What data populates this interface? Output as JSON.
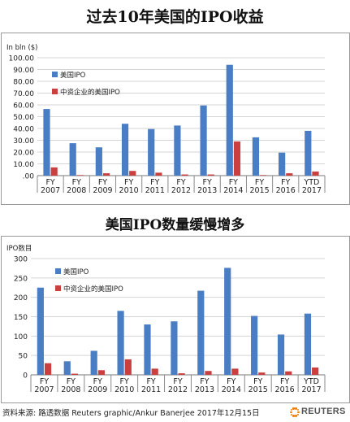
{
  "charts": {
    "top_title": "过去10年美国的IPO收益",
    "bottom_title": "美国IPO数量缓慢增多"
  },
  "chart_data": [
    {
      "type": "bar",
      "title": "过去10年美国的IPO收益",
      "ylabel": "In bln ($)",
      "ylim": [
        0,
        100
      ],
      "yticks": [
        0,
        10,
        20,
        30,
        40,
        50,
        60,
        70,
        80,
        90,
        100
      ],
      "ytick_labels": [
        ".00",
        "10.00",
        "20.00",
        "30.00",
        "40.00",
        "50.00",
        "60.00",
        "70.00",
        "80.00",
        "90.00",
        "100.00"
      ],
      "categories": [
        [
          "FY",
          "2007"
        ],
        [
          "FY",
          "2008"
        ],
        [
          "FY",
          "2009"
        ],
        [
          "FY",
          "2010"
        ],
        [
          "FY",
          "2011"
        ],
        [
          "FY",
          "2012"
        ],
        [
          "FY",
          "2013"
        ],
        [
          "FY",
          "2014"
        ],
        [
          "FY",
          "2015"
        ],
        [
          "FY",
          "2016"
        ],
        [
          "YTD",
          "2017"
        ]
      ],
      "series": [
        {
          "name": "美国IPO",
          "color": "#4a7ec4",
          "values": [
            56.5,
            27.5,
            24,
            44,
            39.5,
            42.5,
            59.5,
            94,
            32.5,
            19.5,
            38
          ]
        },
        {
          "name": "中资企业的美国IPO",
          "color": "#c9403e",
          "values": [
            7,
            0.5,
            2,
            4,
            2.5,
            1,
            1,
            29,
            0.5,
            2,
            3.5
          ]
        }
      ],
      "legend_position": "top-left",
      "grid": "horizontal"
    },
    {
      "type": "bar",
      "title": "美国IPO数量缓慢增多",
      "ylabel": "IPO数目",
      "ylim": [
        0,
        300
      ],
      "yticks": [
        0,
        50,
        100,
        150,
        200,
        250,
        300
      ],
      "ytick_labels": [
        "0",
        "50",
        "100",
        "150",
        "200",
        "250",
        "300"
      ],
      "categories": [
        [
          "FY",
          "2007"
        ],
        [
          "FY",
          "2008"
        ],
        [
          "FY",
          "2009"
        ],
        [
          "FY",
          "2010"
        ],
        [
          "FY",
          "2011"
        ],
        [
          "FY",
          "2012"
        ],
        [
          "FY",
          "2013"
        ],
        [
          "FY",
          "2014"
        ],
        [
          "FY",
          "2015"
        ],
        [
          "FY",
          "2016"
        ],
        [
          "YTD",
          "2017"
        ]
      ],
      "series": [
        {
          "name": "美国IPO",
          "color": "#4a7ec4",
          "values": [
            225,
            35,
            62,
            165,
            130,
            138,
            217,
            276,
            152,
            104,
            158
          ]
        },
        {
          "name": "中资企业的美国IPO",
          "color": "#c9403e",
          "values": [
            30,
            3,
            12,
            40,
            16,
            4,
            10,
            16,
            6,
            9,
            19
          ]
        }
      ],
      "legend_position": "top-left",
      "grid": "horizontal"
    }
  ],
  "footer": {
    "source": "资料来源: 路透数据 Reuters graphic/Ankur Banerjee 2017年12月15日",
    "logo_text": "REUTERS",
    "logo_icon": "reuters-dot-ring-icon",
    "logo_color": "#f07c00"
  }
}
